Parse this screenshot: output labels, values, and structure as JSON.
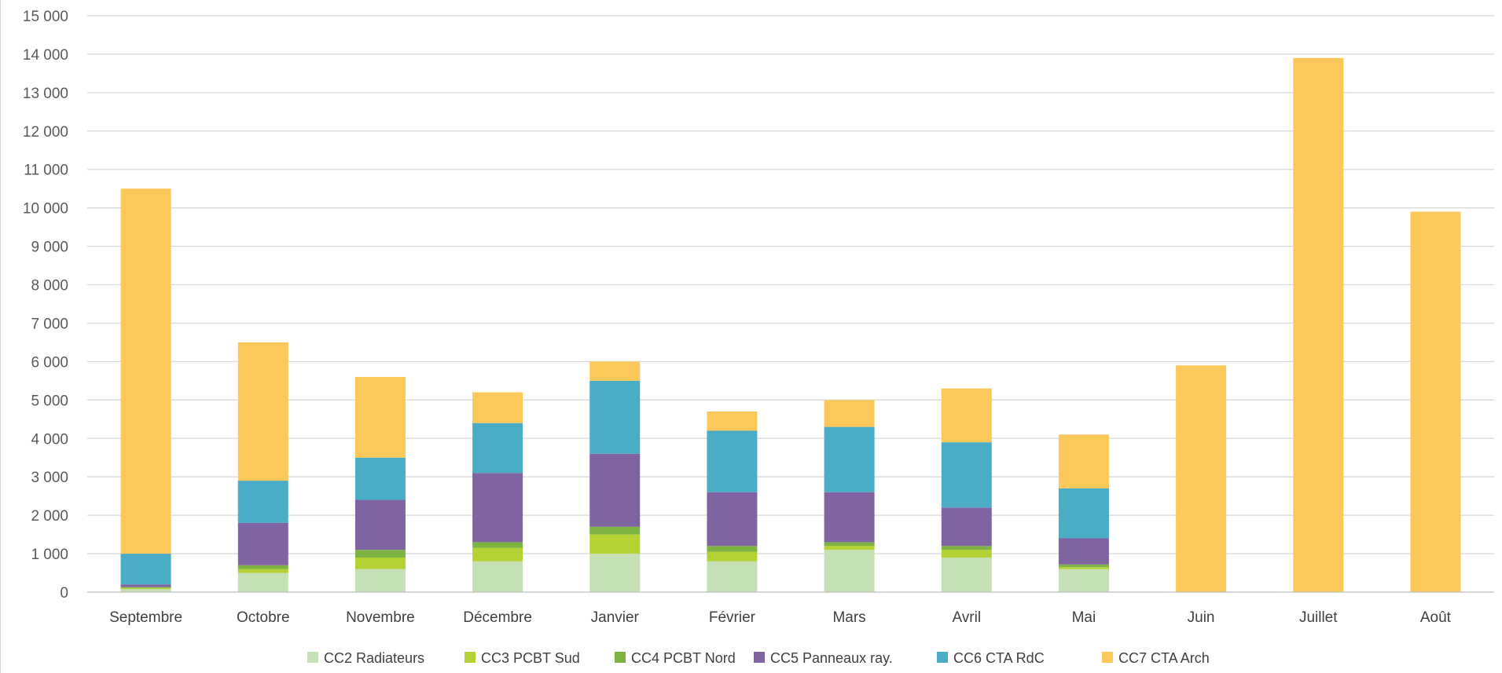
{
  "chart_data": {
    "type": "bar",
    "stacked": true,
    "categories": [
      "Septembre",
      "Octobre",
      "Novembre",
      "Décembre",
      "Janvier",
      "Février",
      "Mars",
      "Avril",
      "Mai",
      "Juin",
      "Juillet",
      "Août"
    ],
    "ylim": [
      0,
      15000
    ],
    "yticks": [
      0,
      1000,
      2000,
      3000,
      4000,
      5000,
      6000,
      7000,
      8000,
      9000,
      10000,
      11000,
      12000,
      13000,
      14000,
      15000
    ],
    "ytick_labels": [
      "0",
      "1 000",
      "2 000",
      "3 000",
      "4 000",
      "5 000",
      "6 000",
      "7 000",
      "8 000",
      "9 000",
      "10 000",
      "11 000",
      "12 000",
      "13 000",
      "14 000",
      "15 000"
    ],
    "grid": true,
    "legend_position": "bottom",
    "series": [
      {
        "name": "CC2 Radiateurs",
        "color": "#c5e0b4",
        "values": [
          80,
          500,
          600,
          800,
          1000,
          800,
          1100,
          900,
          600,
          0,
          0,
          0
        ]
      },
      {
        "name": "CC3 PCBT Sud",
        "color": "#b4d234",
        "values": [
          30,
          100,
          300,
          350,
          500,
          250,
          100,
          200,
          50,
          0,
          0,
          0
        ]
      },
      {
        "name": "CC4 PCBT Nord",
        "color": "#7cb342",
        "values": [
          20,
          100,
          200,
          150,
          200,
          150,
          100,
          100,
          70,
          0,
          0,
          0
        ]
      },
      {
        "name": "CC5 Panneaux ray.",
        "color": "#8064a2",
        "values": [
          70,
          1100,
          1300,
          1800,
          1900,
          1400,
          1300,
          1000,
          680,
          0,
          0,
          0
        ]
      },
      {
        "name": "CC6 CTA RdC",
        "color": "#4bacc6",
        "values": [
          800,
          1100,
          1100,
          1300,
          1900,
          1600,
          1700,
          1700,
          1300,
          0,
          0,
          0
        ]
      },
      {
        "name": "CC7 CTA Arch",
        "color": "#fdc85a",
        "values": [
          9500,
          3600,
          2100,
          800,
          500,
          500,
          700,
          1400,
          1400,
          5900,
          13900,
          9900
        ]
      }
    ]
  }
}
